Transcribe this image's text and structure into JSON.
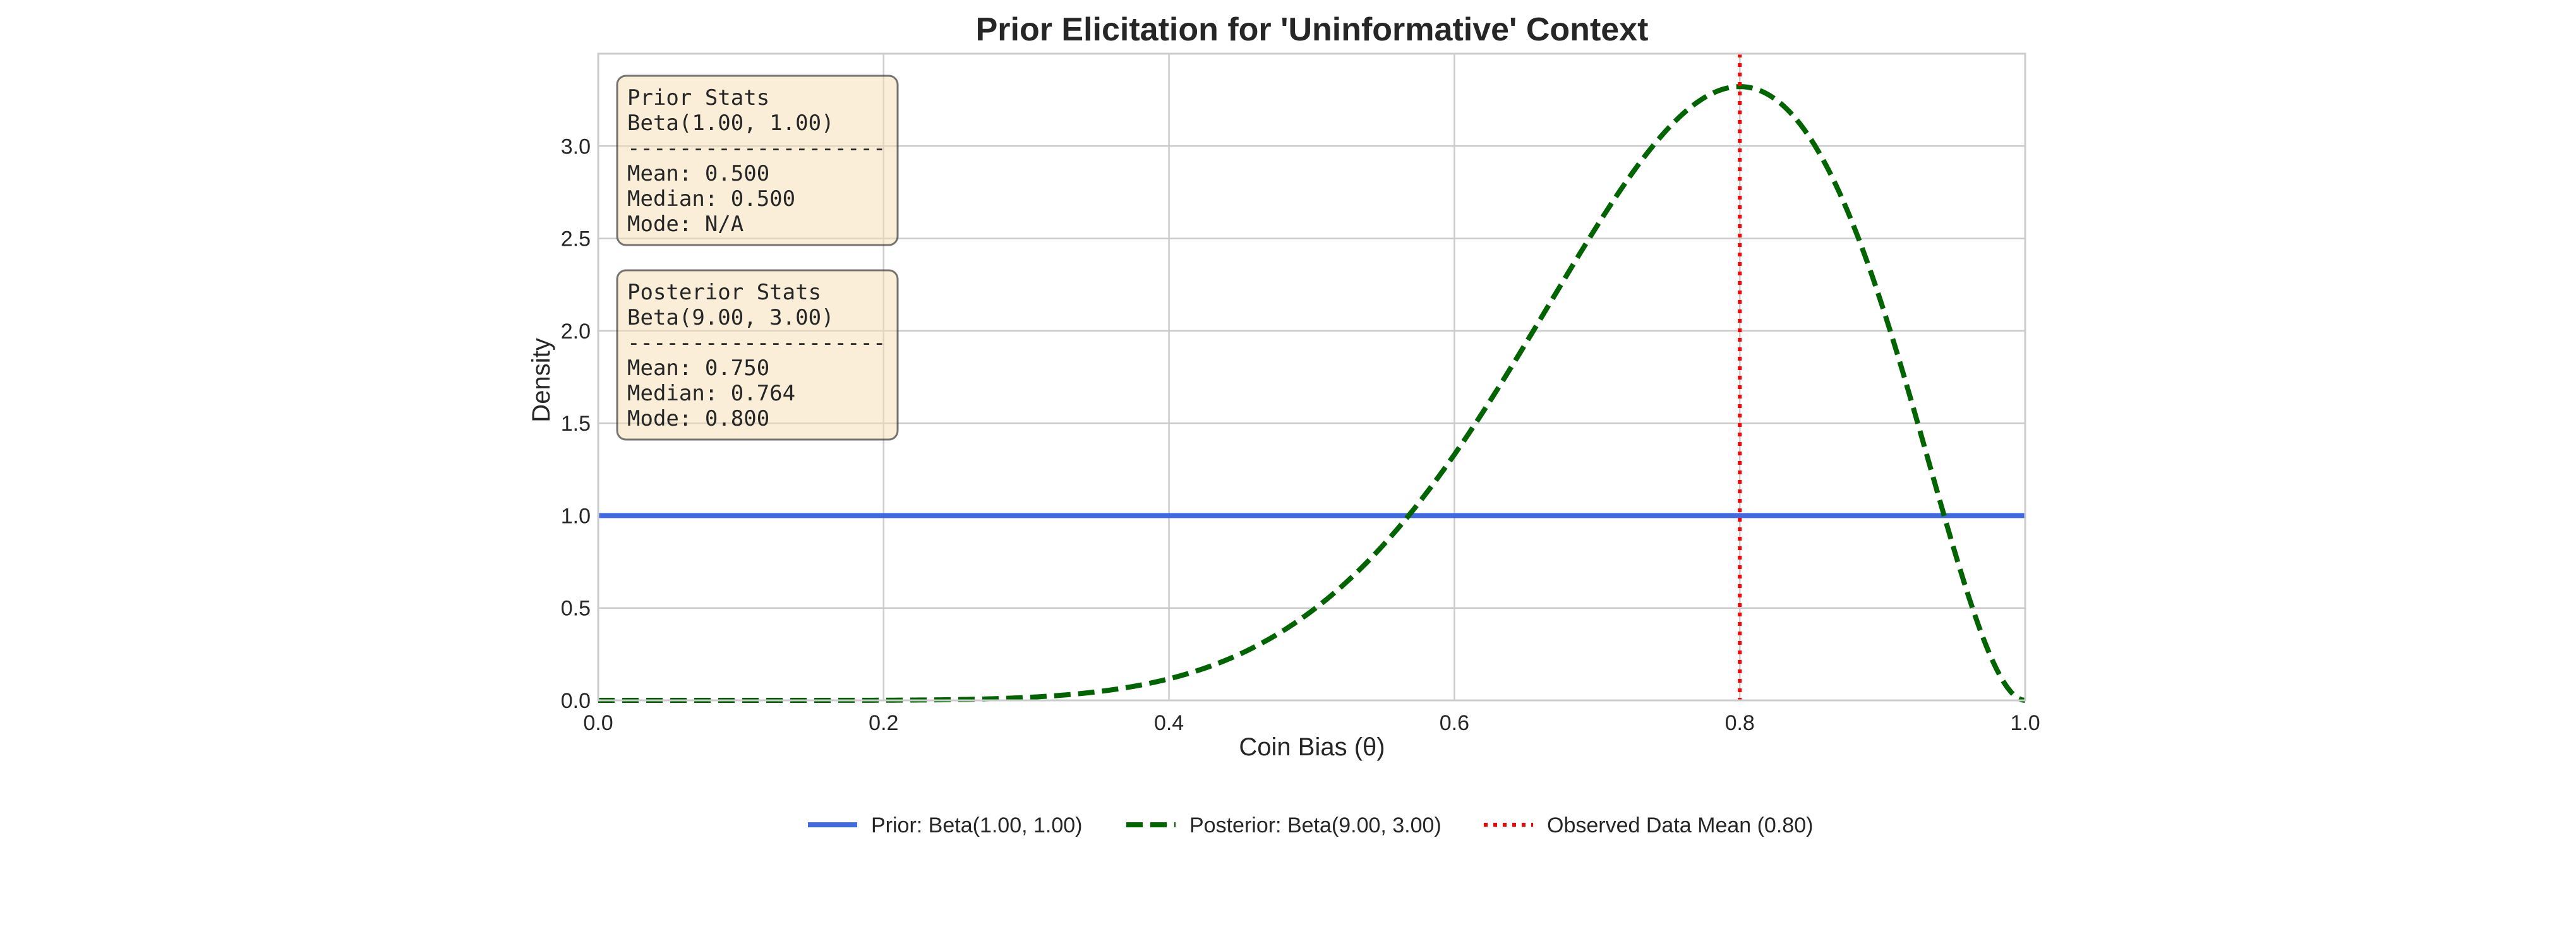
{
  "chart_data": {
    "type": "line",
    "title": "Prior Elicitation for 'Uninformative' Context",
    "xlabel": "Coin Bias (θ)",
    "ylabel": "Density",
    "xlim": [
      0.0,
      1.0
    ],
    "ylim": [
      0.0,
      3.5
    ],
    "grid": true,
    "x_ticks": [
      "0.0",
      "0.2",
      "0.4",
      "0.6",
      "0.8",
      "1.0"
    ],
    "y_ticks": [
      "0.0",
      "0.5",
      "1.0",
      "1.5",
      "2.0",
      "2.5",
      "3.0"
    ],
    "legend_position": "bottom-center",
    "series": [
      {
        "name": "Prior: Beta(1.00, 1.00)",
        "style": "solid",
        "color": "#4169e1",
        "distribution": "beta",
        "alpha": 1.0,
        "beta": 1.0
      },
      {
        "name": "Posterior: Beta(9.00, 3.00)",
        "style": "dashed",
        "color": "#006400",
        "distribution": "beta",
        "alpha": 9.0,
        "beta": 3.0
      },
      {
        "name": "Observed Data Mean (0.80)",
        "style": "dotted",
        "color": "#ff0000",
        "type": "vline",
        "x": 0.8
      }
    ],
    "stat_boxes": [
      {
        "lines": [
          "Prior Stats",
          "Beta(1.00, 1.00)",
          "--------------------",
          "Mean:   0.500",
          "Median: 0.500",
          "Mode:   N/A"
        ]
      },
      {
        "lines": [
          "Posterior Stats",
          "Beta(9.00, 3.00)",
          "--------------------",
          "Mean:   0.750",
          "Median: 0.764",
          "Mode:   0.800"
        ]
      }
    ],
    "stat_box_fill": "#f5deb3"
  }
}
